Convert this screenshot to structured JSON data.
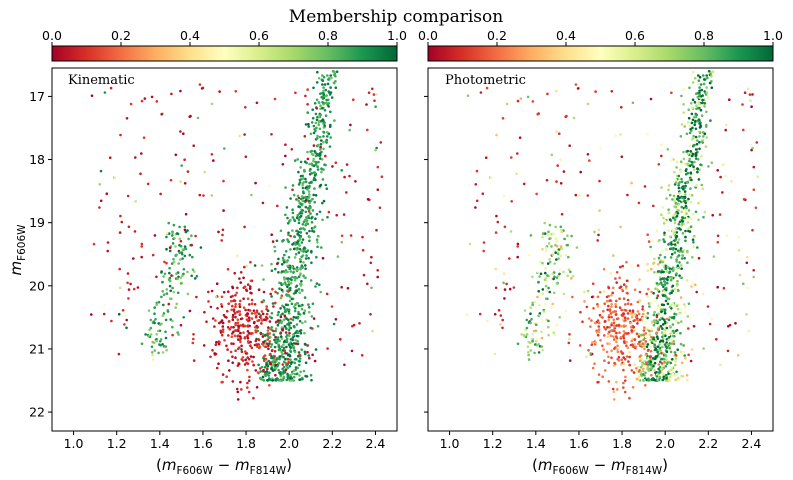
{
  "title": "Membership comparison",
  "colors": {
    "cmap": [
      "#a50026",
      "#d73027",
      "#f46d43",
      "#fdae61",
      "#fee08b",
      "#ffffbf",
      "#d9ef8b",
      "#a6d96a",
      "#66bd63",
      "#1a9850",
      "#006837"
    ]
  },
  "chart_data": [
    {
      "type": "scatter",
      "panel_label": "Kinematic",
      "xlabel": "(m_F606W − m_F814W)",
      "ylabel": "m_F606W",
      "xlim": [
        0.9,
        2.5
      ],
      "ylim": [
        22.3,
        16.55
      ],
      "y_inverted": true,
      "xticks": [
        "1.0",
        "1.2",
        "1.4",
        "1.6",
        "1.8",
        "2.0",
        "2.2",
        "2.4"
      ],
      "yticks": [
        "17",
        "18",
        "19",
        "20",
        "21",
        "22"
      ],
      "colorbar": {
        "range": [
          0.0,
          1.0
        ],
        "ticks": [
          "0.0",
          "0.2",
          "0.4",
          "0.6",
          "0.8",
          "1.0"
        ],
        "colormap": "RdYlGn"
      },
      "mode": "kinematic"
    },
    {
      "type": "scatter",
      "panel_label": "Photometric",
      "xlabel": "(m_F606W − m_F814W)",
      "ylabel": "",
      "xlim": [
        0.9,
        2.5
      ],
      "ylim": [
        22.3,
        16.55
      ],
      "y_inverted": true,
      "xticks": [
        "1.0",
        "1.2",
        "1.4",
        "1.6",
        "1.8",
        "2.0",
        "2.2",
        "2.4"
      ],
      "yticks": [],
      "colorbar": {
        "range": [
          0.0,
          1.0
        ],
        "ticks": [
          "0.0",
          "0.2",
          "0.4",
          "0.6",
          "0.8",
          "1.0"
        ],
        "colormap": "RdYlGn"
      },
      "mode": "photometric"
    }
  ],
  "populations": [
    {
      "name": "main-sequence",
      "n": 900,
      "color_fn": "ms",
      "mag_range": [
        16.6,
        21.5
      ]
    },
    {
      "name": "blue-sequence",
      "n": 150,
      "color_fn": "blue",
      "mag_range": [
        19.0,
        21.1
      ]
    },
    {
      "name": "field-faint",
      "n": 320,
      "color_center": [
        1.78,
        20.7
      ],
      "spread": [
        0.09,
        0.45
      ]
    },
    {
      "name": "field-bright",
      "n": 260,
      "color_range": [
        1.05,
        2.45
      ],
      "mag_range": [
        16.8,
        21.3
      ]
    }
  ]
}
